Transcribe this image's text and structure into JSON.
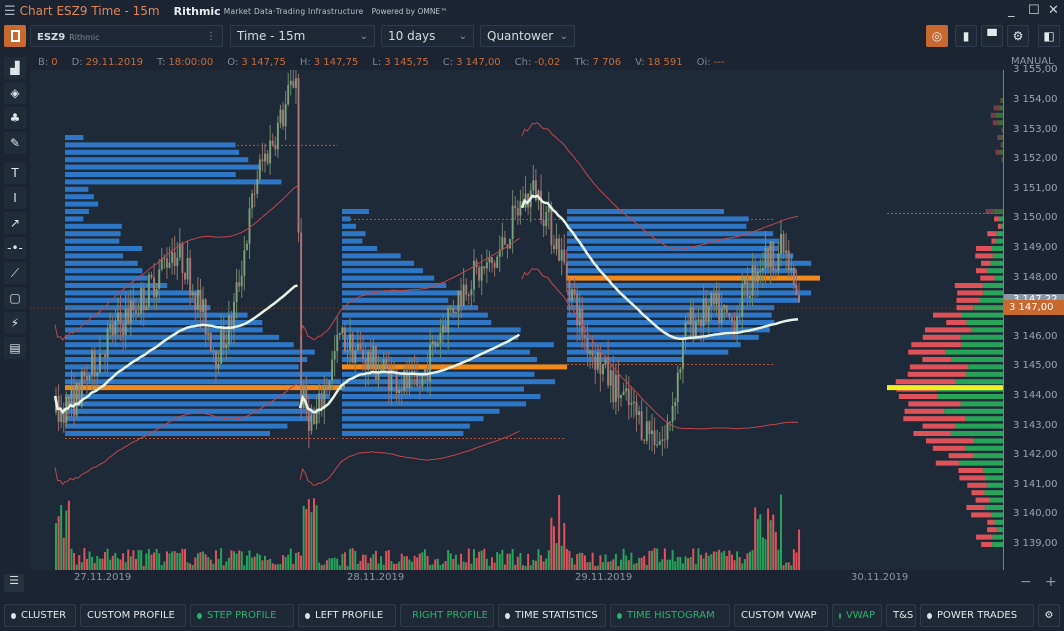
{
  "window": {
    "title": "Chart ESZ9 Time - 15m",
    "brand": "Rithmic",
    "brand_sub": "Market Data·Trading Infrastructure",
    "powered": "Powered by OMNE™"
  },
  "toolbar": {
    "symbol": "ESZ9",
    "connection": "Rithmic",
    "timeframe": "Time - 15m",
    "period": "10 days",
    "style": "Quantower"
  },
  "info": [
    {
      "k": "B:",
      "v": "0"
    },
    {
      "k": "D:",
      "v": "29.11.2019"
    },
    {
      "k": "T:",
      "v": "18:00:00"
    },
    {
      "k": "O:",
      "v": "3 147,75"
    },
    {
      "k": "H:",
      "v": "3 147,75"
    },
    {
      "k": "L:",
      "v": "3 145,75"
    },
    {
      "k": "C:",
      "v": "3 147,00"
    },
    {
      "k": "Ch:",
      "v": "-0,02"
    },
    {
      "k": "Tk:",
      "v": "7 706"
    },
    {
      "k": "V:",
      "v": "18 591"
    },
    {
      "k": "Oi:",
      "v": "---"
    }
  ],
  "axis": {
    "mode": "MANUAL",
    "current_price": "3 147,00",
    "prev_label": "3 147,22",
    "labels": [
      "3 155,00",
      "3 154,00",
      "3 153,00",
      "3 152,00",
      "3 151,00",
      "3 150,00",
      "3 149,00",
      "3 148,00",
      "3 146,00",
      "3 145,00",
      "3 144,00",
      "3 143,00",
      "3 142,00",
      "3 141,00",
      "3 140,00",
      "3 139,00"
    ]
  },
  "dates": [
    "27.11.2019",
    "28.11.2019",
    "29.11.2019",
    "30.11.2019"
  ],
  "bottom_buttons": [
    {
      "label": "CLUSTER",
      "dot": true,
      "active": false
    },
    {
      "label": "CUSTOM PROFILE",
      "dot": false,
      "active": false
    },
    {
      "label": "STEP PROFILE",
      "dot": true,
      "active": true
    },
    {
      "label": "LEFT PROFILE",
      "dot": true,
      "active": false
    },
    {
      "label": "RIGHT PROFILE",
      "dot": true,
      "active": true
    },
    {
      "label": "TIME STATISTICS",
      "dot": true,
      "active": false
    },
    {
      "label": "TIME HISTOGRAM",
      "dot": true,
      "active": true
    },
    {
      "label": "CUSTOM VWAP",
      "dot": false,
      "active": false
    },
    {
      "label": "VWAP",
      "dot": true,
      "active": true
    },
    {
      "label": "T&S",
      "dot": false,
      "active": false
    },
    {
      "label": "POWER TRADES",
      "dot": true,
      "active": false
    }
  ],
  "left_tools": [
    "indicators-icon",
    "layers-icon",
    "alert-bell-icon",
    "edit-icon",
    "text-tool-icon",
    "vertical-line-icon",
    "arrow-tool-icon",
    "horizontal-line-icon",
    "trend-line-icon",
    "rectangle-tool-icon",
    "magnet-icon",
    "template-icon"
  ],
  "colors": {
    "accent": "#c8692f",
    "up": "#27a35a",
    "down": "#e0525a",
    "profile": "#2f7fd6",
    "poc": "#f08a1c",
    "vwap": "#e6f2e6",
    "right_poc": "#f0f020"
  },
  "chart_data": {
    "type": "candlestick",
    "ylim": [
      3138.5,
      3155.5
    ],
    "price_path": [
      [
        0,
        3143.5
      ],
      [
        8,
        3144
      ],
      [
        20,
        3146
      ],
      [
        35,
        3147.5
      ],
      [
        45,
        3149
      ],
      [
        50,
        3148.5
      ],
      [
        62,
        3145.5
      ],
      [
        68,
        3146.5
      ],
      [
        78,
        3151.5
      ],
      [
        88,
        3153.5
      ],
      [
        93,
        3155
      ],
      [
        95,
        3144
      ],
      [
        100,
        3143
      ],
      [
        110,
        3146
      ],
      [
        125,
        3145
      ],
      [
        140,
        3144.2
      ],
      [
        150,
        3146.5
      ],
      [
        160,
        3148
      ],
      [
        170,
        3148.5
      ],
      [
        180,
        3150.5
      ],
      [
        186,
        3151
      ],
      [
        195,
        3149
      ],
      [
        205,
        3146
      ],
      [
        215,
        3144.5
      ],
      [
        228,
        3143
      ],
      [
        236,
        3142.5
      ],
      [
        245,
        3146.5
      ],
      [
        255,
        3147
      ],
      [
        262,
        3146.5
      ],
      [
        272,
        3148.5
      ],
      [
        282,
        3149
      ],
      [
        288,
        3147
      ]
    ],
    "sessions": [
      {
        "date": "27.11.2019",
        "poc": 3144.3,
        "vah": 3152.5,
        "val": 3143
      },
      {
        "date": "28.11.2019",
        "poc": 3145.0,
        "vah": 3150,
        "val": 3143
      },
      {
        "date": "29.11.2019",
        "poc": 3148.0,
        "vah": 3150,
        "val": 3145.5
      }
    ],
    "right_profile_poc": 3144.3
  }
}
